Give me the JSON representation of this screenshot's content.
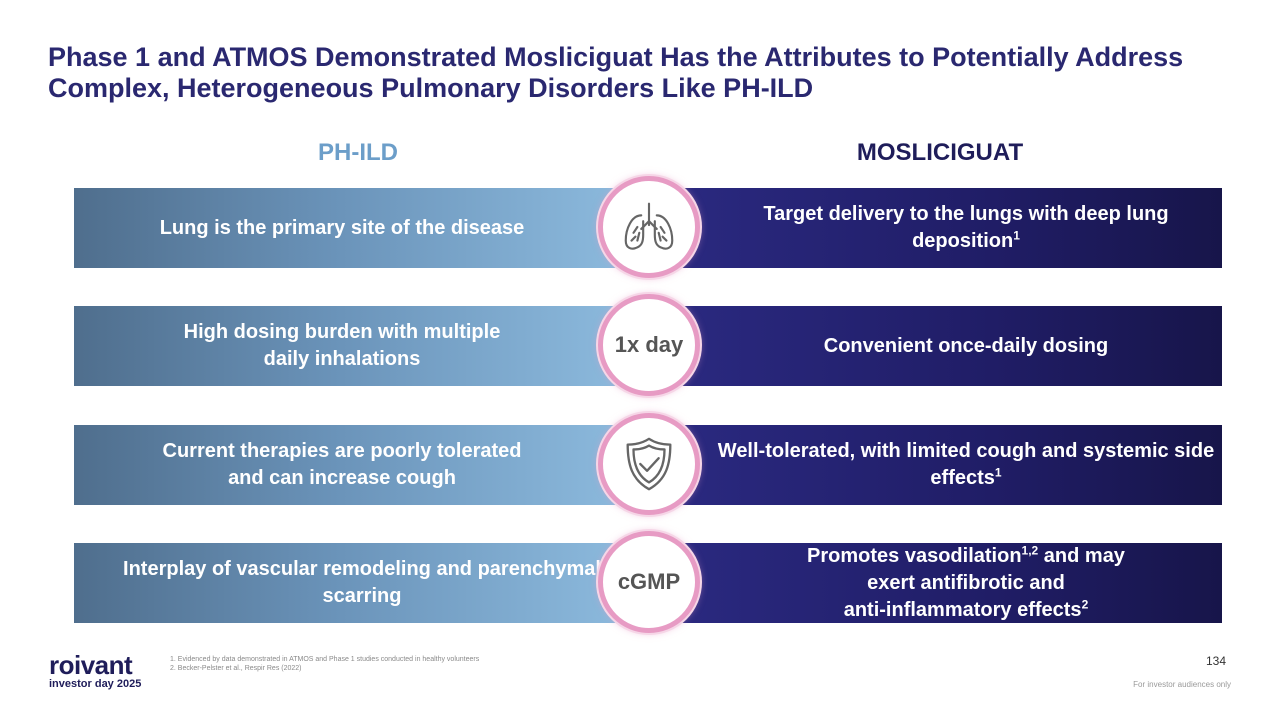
{
  "title": "Phase 1 and ATMOS Demonstrated Mosliciguat Has the Attributes to Potentially Address Complex, Heterogeneous Pulmonary Disorders Like PH-ILD",
  "columns": {
    "left": "PH-ILD",
    "right": "MOSLICIGUAT"
  },
  "rows": [
    {
      "left": "Lung is the primary site of the disease",
      "right_text": "Target delivery to the lungs with deep lung deposition",
      "right_sup": "1",
      "icon": "lungs-icon",
      "badge": ""
    },
    {
      "left": "High dosing burden with multiple\ndaily inhalations",
      "right_text": "Convenient once-daily dosing",
      "right_sup": "",
      "icon": "",
      "badge": "1x day"
    },
    {
      "left": "Current therapies are poorly tolerated\nand can increase cough",
      "right_text": "Well-tolerated, with limited cough and systemic side effects",
      "right_sup": "1",
      "icon": "shield-check-icon",
      "badge": ""
    },
    {
      "left": "Interplay of vascular remodeling and parenchymal\nscarring",
      "right_parts": [
        "Promotes vasodilation",
        "1,2",
        " and may",
        "exert antifibrotic and",
        "anti-inflammatory effects",
        "2"
      ],
      "icon": "",
      "badge": "cGMP"
    }
  ],
  "footnotes": [
    "1. Evidenced by data demonstrated in ATMOS and Phase 1 studies conducted in healthy volunteers",
    "2. Becker-Pelster et al., Respir Res (2022)"
  ],
  "logo": {
    "name": "roivant",
    "sub": "investor day 2025"
  },
  "page_number": "134",
  "disclaimer": "For investor audiences only",
  "colors": {
    "title": "#2a2870",
    "left_column": "#6c9ec9",
    "right_band": "#201d66",
    "circle_ring": "#e79bc4"
  }
}
